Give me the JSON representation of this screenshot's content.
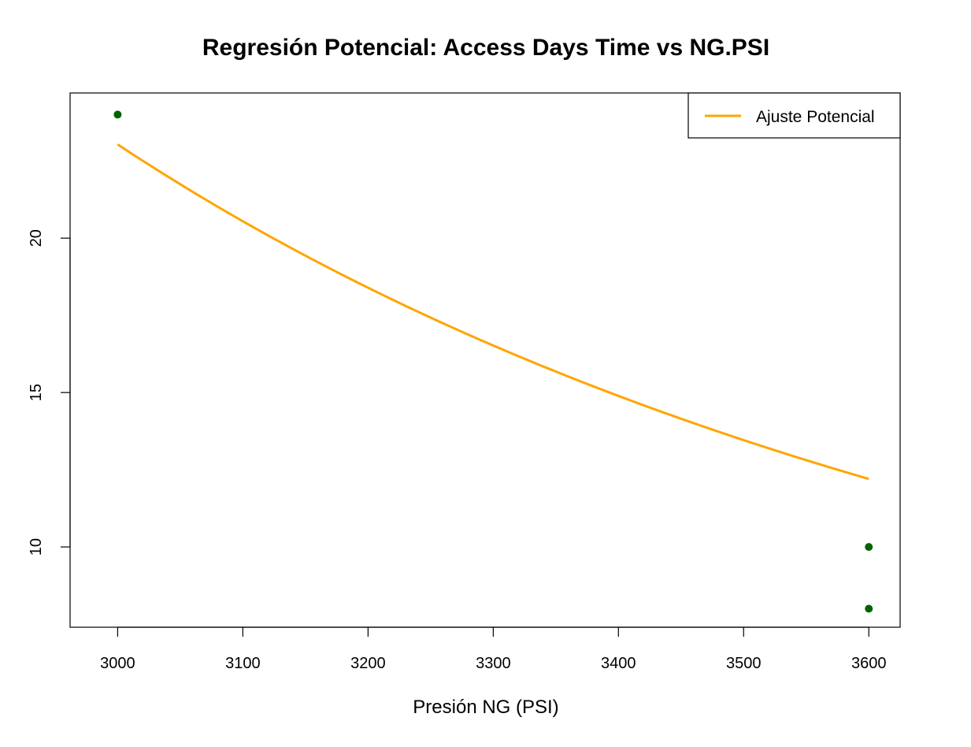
{
  "chart_data": {
    "type": "scatter",
    "title": "Regresión Potencial: Access Days Time vs NG.PSI",
    "xlabel": "Presión NG (PSI)",
    "ylabel": "",
    "xlim": [
      2962,
      3625
    ],
    "ylim": [
      7.4,
      24.7
    ],
    "x_ticks": [
      3000,
      3100,
      3200,
      3300,
      3400,
      3500,
      3600
    ],
    "y_ticks": [
      10,
      15,
      20
    ],
    "grid": false,
    "legend_position": "top-right",
    "series": [
      {
        "kind": "points",
        "color": "#006400",
        "x": [
          3000,
          3600,
          3600
        ],
        "y": [
          24,
          10,
          8
        ]
      },
      {
        "kind": "line",
        "name": "Ajuste Potencial",
        "color": "#FFA500",
        "model": "power",
        "a": 30330000000000,
        "b": -3.4855,
        "x_range": [
          3000,
          3600
        ]
      }
    ]
  }
}
